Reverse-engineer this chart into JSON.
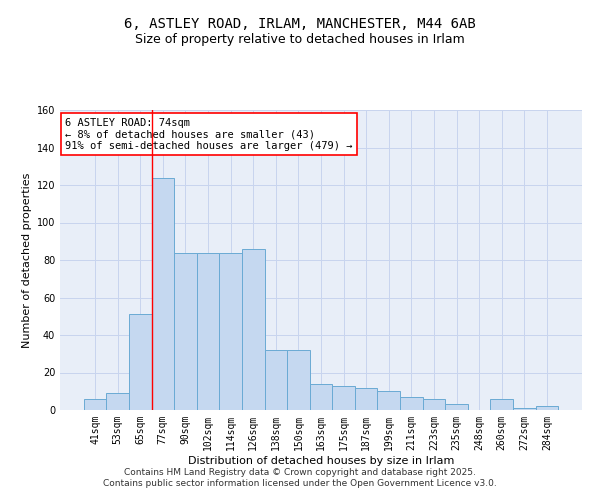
{
  "title": "6, ASTLEY ROAD, IRLAM, MANCHESTER, M44 6AB",
  "subtitle": "Size of property relative to detached houses in Irlam",
  "xlabel": "Distribution of detached houses by size in Irlam",
  "ylabel": "Number of detached properties",
  "categories": [
    "41sqm",
    "53sqm",
    "65sqm",
    "77sqm",
    "90sqm",
    "102sqm",
    "114sqm",
    "126sqm",
    "138sqm",
    "150sqm",
    "163sqm",
    "175sqm",
    "187sqm",
    "199sqm",
    "211sqm",
    "223sqm",
    "235sqm",
    "248sqm",
    "260sqm",
    "272sqm",
    "284sqm"
  ],
  "values": [
    6,
    9,
    51,
    124,
    84,
    84,
    84,
    86,
    32,
    32,
    14,
    13,
    12,
    10,
    7,
    6,
    3,
    0,
    6,
    1,
    2
  ],
  "bar_color": "#c5d8f0",
  "bar_edge_color": "#6aaad4",
  "grid_color": "#c8d4ee",
  "bg_color": "#e8eef8",
  "vline_x_index": 3,
  "vline_color": "red",
  "annotation_text": "6 ASTLEY ROAD: 74sqm\n← 8% of detached houses are smaller (43)\n91% of semi-detached houses are larger (479) →",
  "annotation_box_color": "white",
  "annotation_box_edge": "red",
  "ylim": [
    0,
    160
  ],
  "yticks": [
    0,
    20,
    40,
    60,
    80,
    100,
    120,
    140,
    160
  ],
  "footer": "Contains HM Land Registry data © Crown copyright and database right 2025.\nContains public sector information licensed under the Open Government Licence v3.0.",
  "title_fontsize": 10,
  "subtitle_fontsize": 9,
  "axis_label_fontsize": 8,
  "tick_fontsize": 7,
  "annotation_fontsize": 7.5,
  "footer_fontsize": 6.5
}
